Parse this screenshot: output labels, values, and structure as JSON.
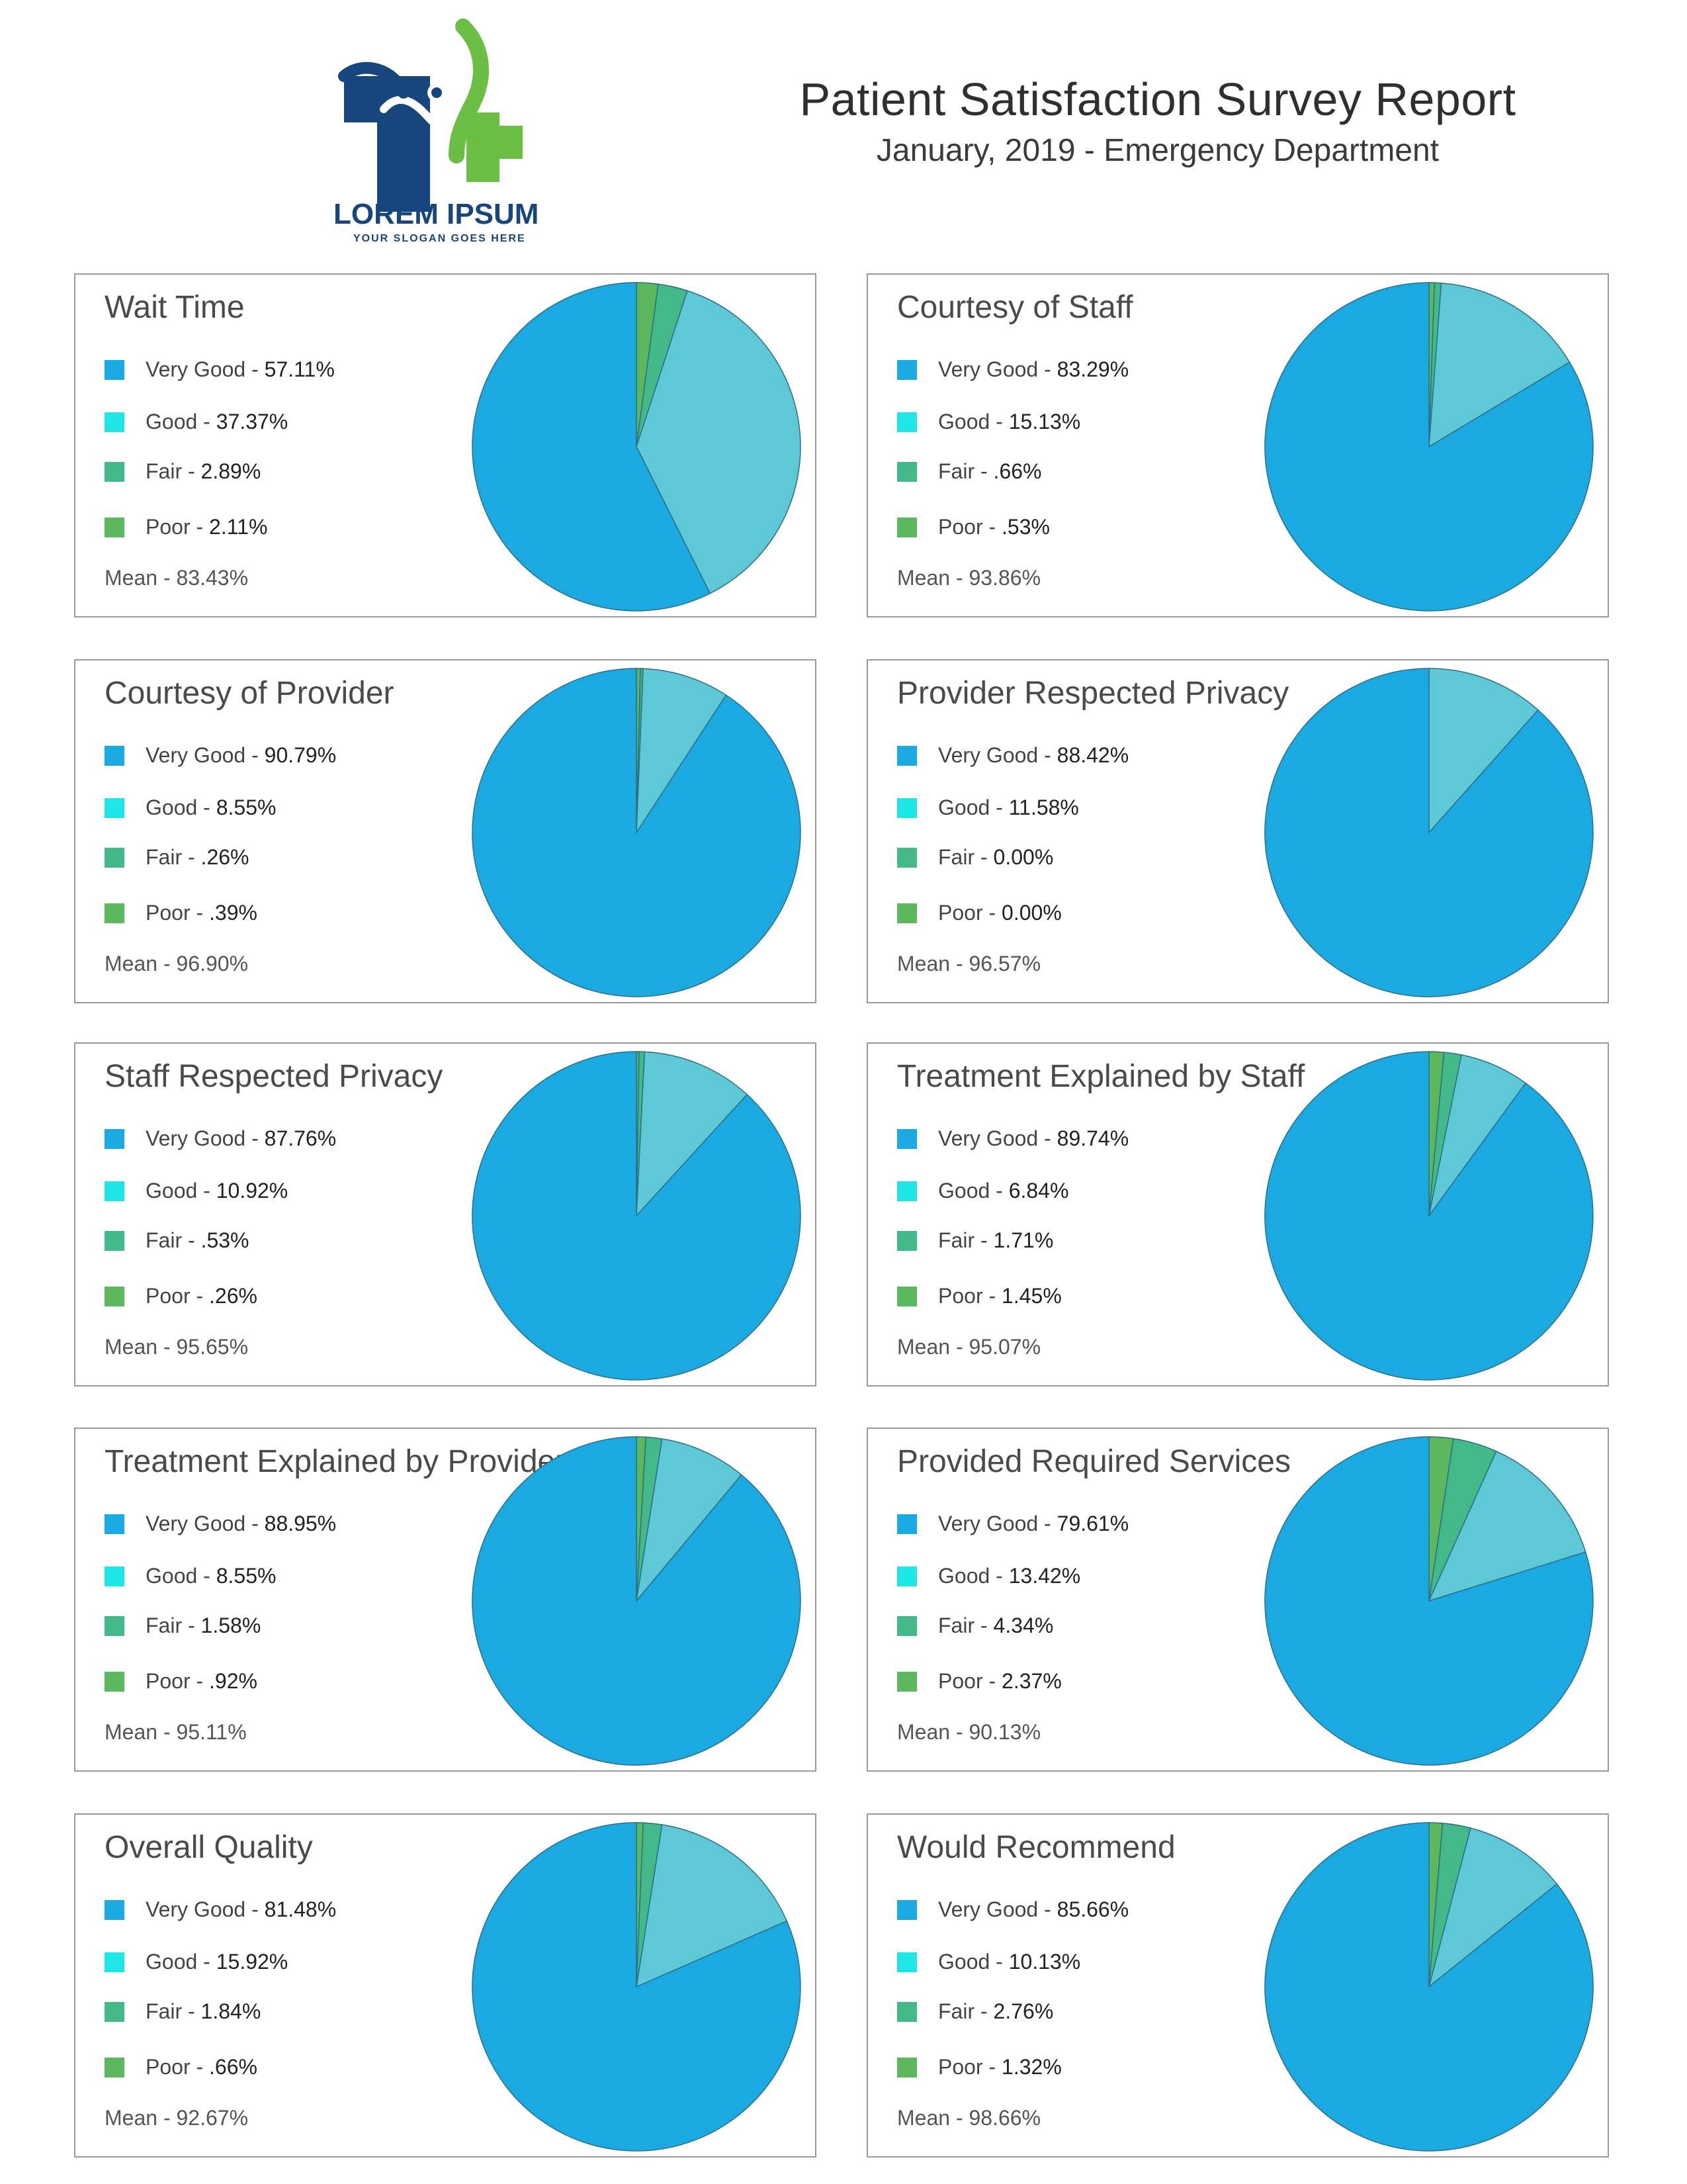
{
  "header": {
    "logo_text": "LOREM IPSUM",
    "logo_slogan": "YOUR SLOGAN GOES HERE",
    "title": "Patient Satisfaction Survey Report",
    "subtitle": "January, 2019 - Emergency Department"
  },
  "colors": {
    "very_good": "#1aa9e0",
    "good": "#1ee6e6",
    "good_slice": "#5ec8d6",
    "fair": "#43b98a",
    "poor": "#5cb85c",
    "logo_blue": "#17457e",
    "logo_green": "#6cbf45"
  },
  "chart_data": [
    {
      "type": "pie",
      "title": "Wait Time",
      "categories": [
        "Very Good",
        "Good",
        "Fair",
        "Poor"
      ],
      "values": [
        57.11,
        37.37,
        2.89,
        2.11
      ],
      "labels": [
        "57.11%",
        "37.37%",
        "2.89%",
        "2.11%"
      ],
      "mean": "Mean - 83.43%"
    },
    {
      "type": "pie",
      "title": "Courtesy of Staff",
      "categories": [
        "Very Good",
        "Good",
        "Fair",
        "Poor"
      ],
      "values": [
        83.29,
        15.13,
        0.66,
        0.53
      ],
      "labels": [
        "83.29%",
        "15.13%",
        ".66%",
        ".53%"
      ],
      "mean": "Mean - 93.86%"
    },
    {
      "type": "pie",
      "title": "Courtesy of Provider",
      "categories": [
        "Very Good",
        "Good",
        "Fair",
        "Poor"
      ],
      "values": [
        90.79,
        8.55,
        0.26,
        0.39
      ],
      "labels": [
        "90.79%",
        "8.55%",
        ".26%",
        ".39%"
      ],
      "mean": "Mean - 96.90%"
    },
    {
      "type": "pie",
      "title": "Provider Respected Privacy",
      "categories": [
        "Very Good",
        "Good",
        "Fair",
        "Poor"
      ],
      "values": [
        88.42,
        11.58,
        0,
        0
      ],
      "labels": [
        "88.42%",
        "11.58%",
        "0.00%",
        "0.00%"
      ],
      "mean": "Mean - 96.57%"
    },
    {
      "type": "pie",
      "title": "Staff Respected Privacy",
      "categories": [
        "Very Good",
        "Good",
        "Fair",
        "Poor"
      ],
      "values": [
        87.76,
        10.92,
        0.53,
        0.26
      ],
      "labels": [
        "87.76%",
        "10.92%",
        ".53%",
        ".26%"
      ],
      "mean": "Mean - 95.65%"
    },
    {
      "type": "pie",
      "title": "Treatment Explained by Staff",
      "categories": [
        "Very Good",
        "Good",
        "Fair",
        "Poor"
      ],
      "values": [
        89.74,
        6.84,
        1.71,
        1.45
      ],
      "labels": [
        "89.74%",
        "6.84%",
        "1.71%",
        "1.45%"
      ],
      "mean": "Mean - 95.07%"
    },
    {
      "type": "pie",
      "title": "Treatment Explained by Provider",
      "categories": [
        "Very Good",
        "Good",
        "Fair",
        "Poor"
      ],
      "values": [
        88.95,
        8.55,
        1.58,
        0.92
      ],
      "labels": [
        "88.95%",
        "8.55%",
        "1.58%",
        ".92%"
      ],
      "mean": "Mean - 95.11%"
    },
    {
      "type": "pie",
      "title": "Provided Required Services",
      "categories": [
        "Very Good",
        "Good",
        "Fair",
        "Poor"
      ],
      "values": [
        79.61,
        13.42,
        4.34,
        2.37
      ],
      "labels": [
        "79.61%",
        "13.42%",
        "4.34%",
        "2.37%"
      ],
      "mean": "Mean - 90.13%"
    },
    {
      "type": "pie",
      "title": "Overall Quality",
      "categories": [
        "Very Good",
        "Good",
        "Fair",
        "Poor"
      ],
      "values": [
        81.48,
        15.92,
        1.84,
        0.66
      ],
      "labels": [
        "81.48%",
        "15.92%",
        "1.84%",
        ".66%"
      ],
      "mean": "Mean - 92.67%"
    },
    {
      "type": "pie",
      "title": "Would Recommend",
      "categories": [
        "Very Good",
        "Good",
        "Fair",
        "Poor"
      ],
      "values": [
        85.66,
        10.13,
        2.76,
        1.32
      ],
      "labels": [
        "85.66%",
        "10.13%",
        "2.76%",
        "1.32%"
      ],
      "mean": "Mean - 98.66%"
    }
  ]
}
